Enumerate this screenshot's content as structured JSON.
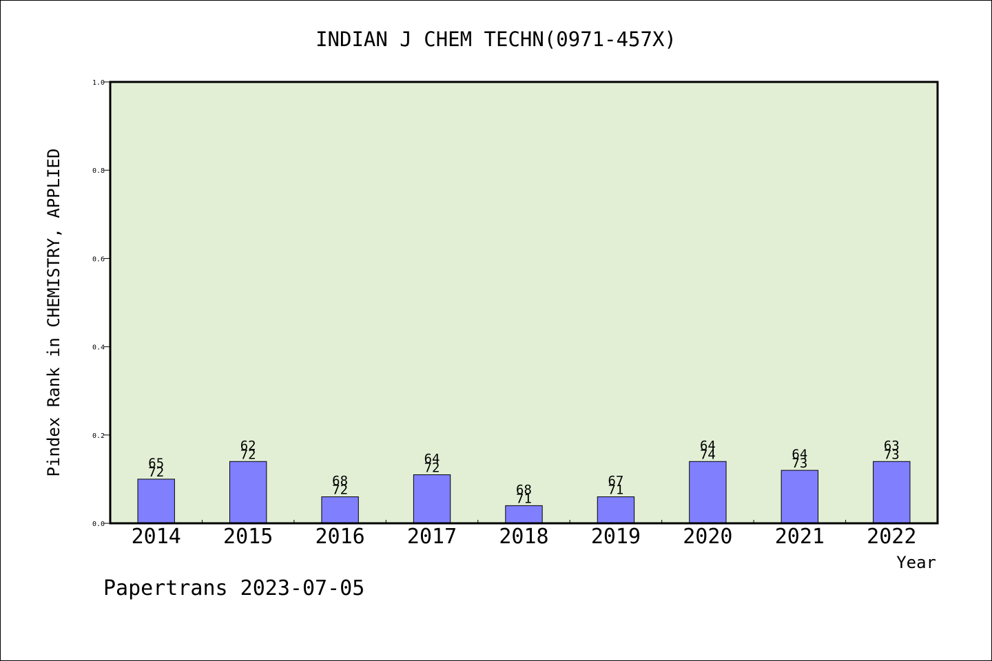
{
  "chart_data": {
    "type": "bar",
    "title": "INDIAN J CHEM TECHN(0971-457X)",
    "xlabel": "Year",
    "ylabel": "Pindex Rank in CHEMISTRY, APPLIED",
    "ylim": [
      0,
      1.0
    ],
    "yticks": [
      "0.0",
      "0.2",
      "0.4",
      "0.6",
      "0.8",
      "1.0"
    ],
    "categories": [
      "2014",
      "2015",
      "2016",
      "2017",
      "2018",
      "2019",
      "2020",
      "2021",
      "2022"
    ],
    "values": [
      0.1,
      0.14,
      0.06,
      0.11,
      0.04,
      0.06,
      0.14,
      0.12,
      0.14
    ],
    "rank_labels": [
      "65",
      "62",
      "68",
      "64",
      "68",
      "67",
      "64",
      "64",
      "63"
    ],
    "total_labels": [
      "72",
      "72",
      "72",
      "72",
      "71",
      "71",
      "74",
      "73",
      "73"
    ],
    "grid": false,
    "colors": {
      "plot_background": "#e2efd5",
      "bar_fill": "#8080ff",
      "bar_stroke": "#000000"
    }
  },
  "footer": {
    "credit": "Papertrans 2023-07-05"
  }
}
